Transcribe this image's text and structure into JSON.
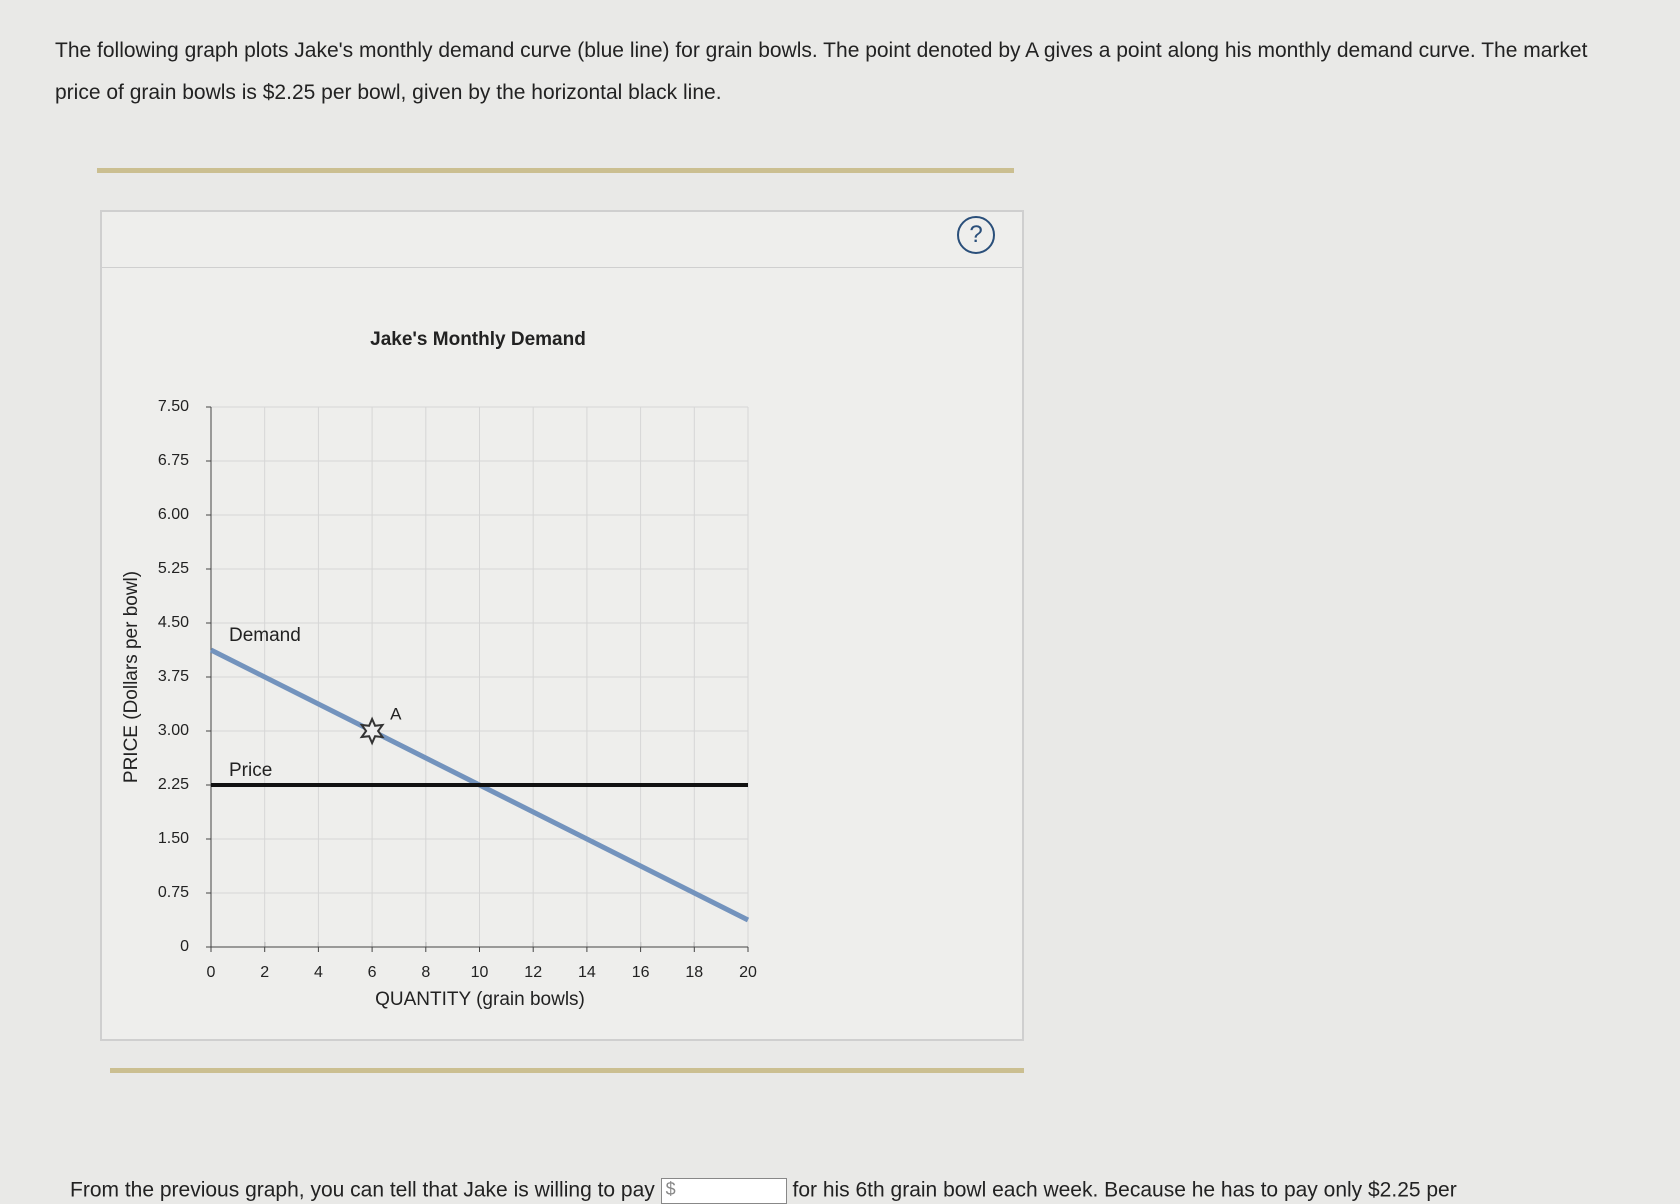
{
  "intro": "The following graph plots Jake's monthly demand curve (blue line) for grain bowls. The point denoted by A gives a point along his monthly demand curve. The market price of grain bowls is $2.25 per bowl, given by the horizontal black line.",
  "help": "?",
  "chart_data": {
    "type": "line",
    "title": "Jake's Monthly Demand",
    "x_label": "QUANTITY (grain bowls)",
    "y_label": "PRICE (Dollars per bowl)",
    "x": [
      0,
      20
    ],
    "series": [
      {
        "name": "Demand",
        "color": "#7393bd",
        "values": [
          4.125,
          0.375
        ]
      },
      {
        "name": "Price",
        "color": "#111111",
        "values": [
          2.25,
          2.25
        ]
      }
    ],
    "annotations": [
      {
        "label": "A",
        "x": 6,
        "y": 3
      }
    ],
    "xlim": [
      0,
      20
    ],
    "xticks": [
      0,
      2,
      4,
      6,
      8,
      10,
      12,
      14,
      16,
      18,
      20
    ],
    "ylim": [
      0,
      7.5
    ],
    "yticks": [
      0,
      0.75,
      {
        "value": 1.5,
        "label": "1.50"
      },
      2.25,
      {
        "value": 3,
        "label": "3.00"
      },
      3.75,
      {
        "value": 4.5,
        "label": "4.50"
      },
      5.25,
      {
        "value": 6,
        "label": "6.00"
      },
      6.75,
      {
        "value": 7.5,
        "label": "7.50"
      }
    ],
    "grid": true
  },
  "question": {
    "before": "From the previous graph, you can tell that Jake is willing to pay",
    "currency": "$",
    "after": "for his 6th grain bowl each week. Because he has to pay only $2.25 per"
  }
}
